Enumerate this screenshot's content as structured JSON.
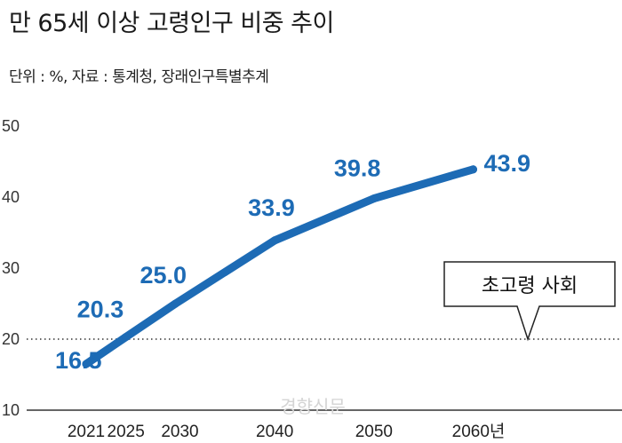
{
  "header": {
    "title": "만 65세 이상 고령인구 비중 추이",
    "subtitle": "단위 : %, 자료 : 통계청, 장래인구특별추계"
  },
  "watermark": "경향신문",
  "colors": {
    "line": "#1d6bb5",
    "label": "#1d6bb5"
  },
  "chart_data": {
    "type": "line",
    "x": [
      "2021",
      "2025",
      "2030",
      "2040",
      "2050",
      "2060년"
    ],
    "x_values": [
      2021,
      2025,
      2030,
      2040,
      2050,
      2060
    ],
    "values": [
      16.5,
      20.3,
      25.0,
      33.9,
      39.8,
      43.9
    ],
    "value_labels": [
      "16.5",
      "20.3",
      "25.0",
      "33.9",
      "39.8",
      "43.9"
    ],
    "ylim": [
      10,
      50
    ],
    "yticks": [
      10,
      20,
      30,
      40,
      50
    ],
    "xlim": [
      2015,
      2075
    ],
    "grid": false,
    "reference_line": {
      "y": 20,
      "style": "dotted",
      "label": "초고령 사회"
    }
  }
}
